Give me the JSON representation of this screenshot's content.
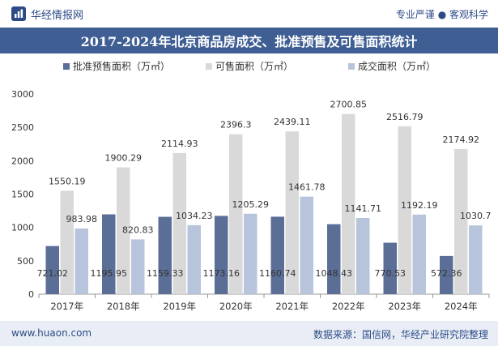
{
  "header": {
    "brand": "华经情报网",
    "tagline": "专业严谨 ● 客观科学"
  },
  "footer": {
    "site": "www.huaon.com",
    "source": "数据来源：国信网，华经产业研究院整理"
  },
  "colors": {
    "series": [
      "#5b6e96",
      "#d9d9d9",
      "#b8c4dc"
    ],
    "title_bg": "#3f5e94",
    "footer_bg": "#e9eef6",
    "brand": "#2c4a86"
  },
  "chart_data": {
    "type": "bar",
    "title": "2017-2024年北京商品房成交、批准预售及可售面积统计",
    "categories": [
      "2017年",
      "2018年",
      "2019年",
      "2020年",
      "2021年",
      "2022年",
      "2023年",
      "2024年"
    ],
    "series": [
      {
        "name": "批准预售面积（万㎡）",
        "values": [
          721.02,
          1195.95,
          1159.33,
          1173.16,
          1160.74,
          1048.43,
          770.53,
          572.36
        ]
      },
      {
        "name": "可售面积（万㎡）",
        "values": [
          1550.19,
          1900.29,
          2114.93,
          2396.3,
          2439.11,
          2700.85,
          2516.79,
          2174.92
        ]
      },
      {
        "name": "成交面积（万㎡）",
        "values": [
          983.98,
          820.83,
          1034.23,
          1205.29,
          1461.78,
          1141.71,
          1192.19,
          1030.7
        ]
      }
    ],
    "ylim": [
      0,
      3000
    ],
    "yticks": [
      0,
      500,
      1000,
      1500,
      2000,
      2500,
      3000
    ],
    "legend": "top",
    "grid": false
  }
}
